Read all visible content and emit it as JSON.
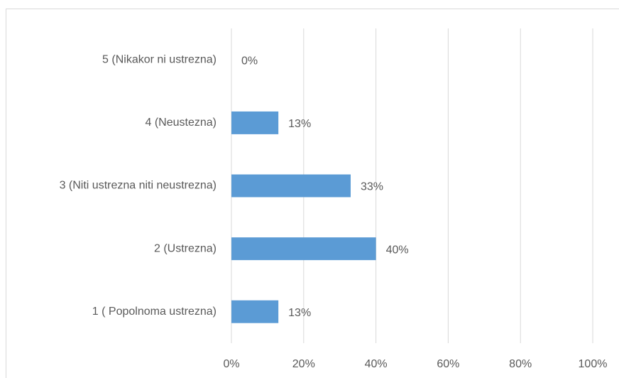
{
  "chart_data": {
    "type": "bar",
    "orientation": "horizontal",
    "categories": [
      "5 (Nikakor ni ustrezna)",
      "4 (Neustezna)",
      "3 (Niti ustrezna niti neustrezna)",
      "2 (Ustrezna)",
      "1 ( Popolnoma ustrezna)"
    ],
    "values": [
      0,
      13,
      33,
      40,
      13
    ],
    "value_labels": [
      "0%",
      "13%",
      "33%",
      "40%",
      "13%"
    ],
    "color": "#5b9bd5",
    "xlim": [
      0,
      100
    ],
    "xticks": [
      {
        "value": 0,
        "label": "0%"
      },
      {
        "value": 20,
        "label": "20%"
      },
      {
        "value": 40,
        "label": "40%"
      },
      {
        "value": 60,
        "label": "60%"
      },
      {
        "value": 80,
        "label": "80%"
      },
      {
        "value": 100,
        "label": "100%"
      }
    ],
    "grid": true
  }
}
